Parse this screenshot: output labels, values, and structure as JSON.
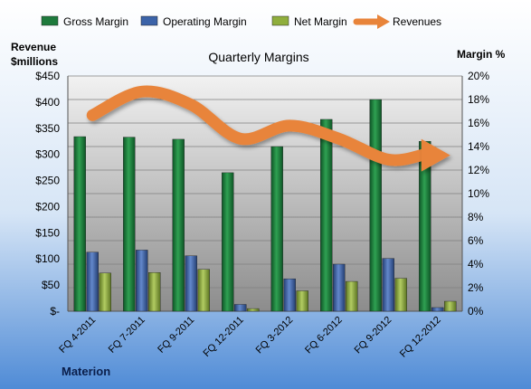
{
  "chart_data": {
    "type": "bar",
    "title": "Quarterly Margins",
    "left_axis_title": [
      "Revenue",
      "$millions"
    ],
    "right_axis_title": "Margin %",
    "footer_label": "Materion",
    "categories": [
      "FQ 4-2011",
      "FQ 7-2011",
      "FQ 9-2011",
      "FQ 12-2011",
      "FQ 3-2012",
      "FQ 6-2012",
      "FQ 9-2012",
      "FQ 12-2012"
    ],
    "left_ticks": [
      "$-",
      "$50",
      "$100",
      "$150",
      "$200",
      "$250",
      "$300",
      "$350",
      "$400",
      "$450"
    ],
    "right_ticks": [
      "0%",
      "2%",
      "4%",
      "6%",
      "8%",
      "10%",
      "12%",
      "14%",
      "16%",
      "18%",
      "20%"
    ],
    "left_axis_range": [
      0,
      450
    ],
    "right_axis_range": [
      0,
      20
    ],
    "bar_series": [
      {
        "name": "Gross Margin",
        "color": "#1E7A3C",
        "values": [
          334,
          333,
          329,
          265,
          315,
          367,
          405,
          325
        ]
      },
      {
        "name": "Operating Margin",
        "color": "#3B63A8",
        "values": [
          113,
          117,
          106,
          13,
          62,
          90,
          101,
          7
        ]
      },
      {
        "name": "Net Margin",
        "color": "#8FAE3C",
        "values": [
          73,
          74,
          80,
          5,
          39,
          57,
          63,
          19
        ]
      }
    ],
    "line_series": {
      "name": "Revenues",
      "color": "#E8843A",
      "axis": "left",
      "values": [
        375,
        420,
        395,
        330,
        355,
        330,
        290,
        300
      ]
    },
    "legend_position": "top",
    "grid": true
  }
}
